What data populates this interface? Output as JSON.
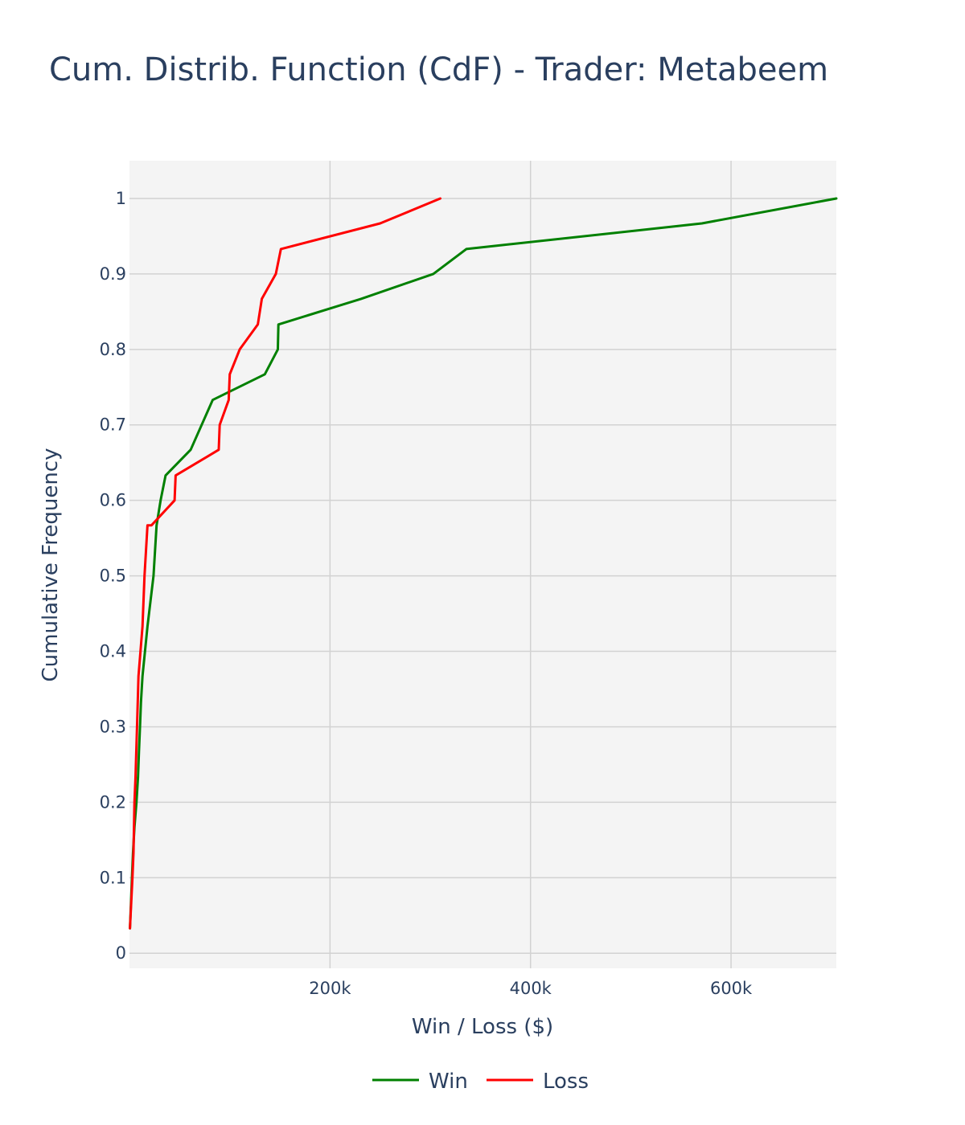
{
  "chart_data": {
    "type": "line",
    "title": "Cum. Distrib. Function (CdF) - Trader: Metabeem",
    "xlabel": "Win / Loss ($)",
    "ylabel": "Cumulative Frequency",
    "xlim": [
      0,
      705000
    ],
    "ylim": [
      -0.02,
      1.05
    ],
    "x_ticks": [
      {
        "value": 200000,
        "label": "200k"
      },
      {
        "value": 400000,
        "label": "400k"
      },
      {
        "value": 600000,
        "label": "600k"
      }
    ],
    "y_ticks": [
      {
        "value": 0,
        "label": "0"
      },
      {
        "value": 0.1,
        "label": "0.1"
      },
      {
        "value": 0.2,
        "label": "0.2"
      },
      {
        "value": 0.3,
        "label": "0.3"
      },
      {
        "value": 0.4,
        "label": "0.4"
      },
      {
        "value": 0.5,
        "label": "0.5"
      },
      {
        "value": 0.6,
        "label": "0.6"
      },
      {
        "value": 0.7,
        "label": "0.7"
      },
      {
        "value": 0.8,
        "label": "0.8"
      },
      {
        "value": 0.9,
        "label": "0.9"
      },
      {
        "value": 1,
        "label": "1"
      }
    ],
    "grid": true,
    "legend_position": "bottom",
    "series": [
      {
        "name": "Win",
        "color": "#008000",
        "x": [
          500,
          1500,
          2500,
          3500,
          5000,
          7000,
          8500,
          9500,
          10500,
          11500,
          13000,
          15500,
          18000,
          21000,
          24000,
          27000,
          31000,
          36000,
          61000,
          83000,
          135000,
          148000,
          148500,
          231000,
          303000,
          336000,
          571000,
          705000
        ],
        "y": [
          0.033,
          0.067,
          0.1,
          0.133,
          0.167,
          0.2,
          0.233,
          0.267,
          0.3,
          0.333,
          0.367,
          0.4,
          0.433,
          0.467,
          0.5,
          0.567,
          0.6,
          0.633,
          0.667,
          0.733,
          0.767,
          0.8,
          0.833,
          0.867,
          0.9,
          0.933,
          0.967,
          1.0
        ]
      },
      {
        "name": "Loss",
        "color": "#ff0000",
        "x": [
          500,
          3000,
          4000,
          5000,
          6000,
          7500,
          9000,
          11000,
          13000,
          15000,
          18000,
          22000,
          45000,
          46000,
          89000,
          90000,
          99000,
          100000,
          110000,
          128000,
          132000,
          146000,
          151000,
          250000,
          310000
        ],
        "y": [
          0.033,
          0.1,
          0.133,
          0.2,
          0.233,
          0.3,
          0.367,
          0.4,
          0.433,
          0.5,
          0.567,
          0.567,
          0.6,
          0.633,
          0.667,
          0.7,
          0.733,
          0.767,
          0.8,
          0.833,
          0.867,
          0.9,
          0.933,
          0.967,
          1.0
        ]
      }
    ]
  }
}
